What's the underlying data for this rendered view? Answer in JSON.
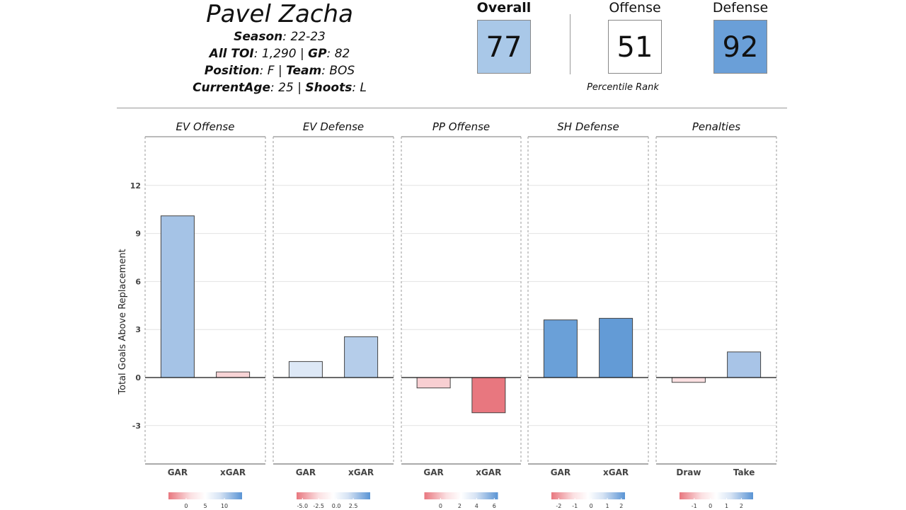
{
  "player": {
    "name": "Pavel Zacha",
    "season_label": "Season",
    "season": "22-23",
    "toi_label": "All TOI",
    "toi": "1,290",
    "gp_label": "GP",
    "gp": "82",
    "position_label": "Position",
    "position": "F",
    "team_label": "Team",
    "team": "BOS",
    "age_label": "CurrentAge",
    "age": "25",
    "shoots_label": "Shoots",
    "shoots": "L"
  },
  "ratings": {
    "overall_label": "Overall",
    "overall": "77",
    "overall_color": "#a9c8e8",
    "offense_label": "Offense",
    "offense": "51",
    "offense_color": "#ffffff",
    "defense_label": "Defense",
    "defense": "92",
    "defense_color": "#6a9fd8",
    "percentile_label": "Percentile Rank"
  },
  "chart_data": {
    "type": "bar",
    "ylabel": "Total Goals Above Replacement",
    "ylim": [
      -5.5,
      15
    ],
    "yticks": [
      -3,
      0,
      3,
      6,
      9,
      12
    ],
    "panels": [
      {
        "title": "EV Offense",
        "categories": [
          "GAR",
          "xGAR"
        ],
        "values": [
          10.1,
          0.35
        ],
        "colors": [
          "#a5c3e6",
          "#f8d4d6"
        ],
        "legend": {
          "ticks": [
            "0",
            "5",
            "10"
          ],
          "tick_pos": [
            0.24,
            0.5,
            0.76
          ]
        }
      },
      {
        "title": "EV Defense",
        "categories": [
          "GAR",
          "xGAR"
        ],
        "values": [
          1.0,
          2.55
        ],
        "colors": [
          "#dde8f6",
          "#b5cdea"
        ],
        "legend": {
          "ticks": [
            "-5.0",
            "-2.5",
            "0.0",
            "2.5"
          ],
          "tick_pos": [
            0.08,
            0.3,
            0.54,
            0.77
          ]
        }
      },
      {
        "title": "PP Offense",
        "categories": [
          "GAR",
          "xGAR"
        ],
        "values": [
          -0.65,
          -2.2
        ],
        "colors": [
          "#f8cfd2",
          "#e8777f"
        ],
        "legend": {
          "ticks": [
            "0",
            "2",
            "4",
            "6"
          ],
          "tick_pos": [
            0.22,
            0.48,
            0.71,
            0.95
          ]
        }
      },
      {
        "title": "SH Defense",
        "categories": [
          "GAR",
          "xGAR"
        ],
        "values": [
          3.6,
          3.7
        ],
        "colors": [
          "#6aa0d8",
          "#639bd6"
        ],
        "legend": {
          "ticks": [
            "-2",
            "-1",
            "0",
            "1",
            "2"
          ],
          "tick_pos": [
            0.1,
            0.32,
            0.54,
            0.76,
            0.95
          ]
        }
      },
      {
        "title": "Penalties",
        "categories": [
          "Draw",
          "Take"
        ],
        "values": [
          -0.3,
          1.6
        ],
        "colors": [
          "#fbe0e2",
          "#a8c4e7"
        ],
        "legend": {
          "ticks": [
            "-1",
            "0",
            "1",
            "2"
          ],
          "tick_pos": [
            0.2,
            0.42,
            0.64,
            0.84
          ]
        }
      }
    ]
  }
}
